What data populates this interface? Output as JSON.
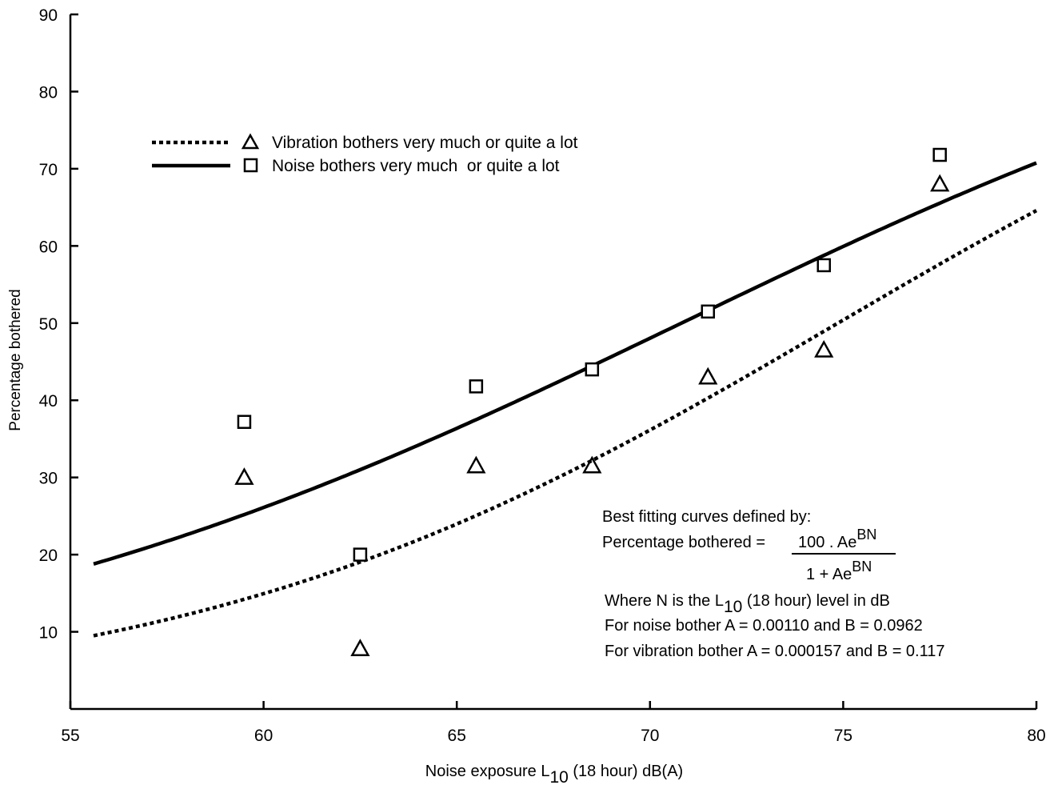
{
  "chart_data": {
    "type": "scatter",
    "xlim": [
      55,
      80
    ],
    "ylim": [
      0,
      90
    ],
    "x_ticks": [
      55,
      60,
      65,
      70,
      75,
      80
    ],
    "y_ticks": [
      10,
      20,
      30,
      40,
      50,
      60,
      70,
      80,
      90
    ],
    "x_tick_labels": [
      "55",
      "60",
      "65",
      "70",
      "75",
      "80"
    ],
    "y_tick_labels": [
      "10",
      "20",
      "30",
      "40",
      "50",
      "60",
      "70",
      "80",
      "90"
    ],
    "xlabel": {
      "prefix": "Noise exposure L",
      "sub": "10",
      "suffix": " (18 hour) dB(A)"
    },
    "ylabel": "Percentage bothered",
    "grid": false,
    "legend_position": "top-left",
    "series": [
      {
        "name": "Vibration bothers very much or quite a lot",
        "marker": "triangle",
        "line_style": "dotted",
        "fit": {
          "A": 0.000157,
          "B": 0.117,
          "x_range": [
            55.6,
            80
          ]
        },
        "points": [
          {
            "x": 59.5,
            "y": 30
          },
          {
            "x": 62.5,
            "y": 7.8
          },
          {
            "x": 65.5,
            "y": 31.5
          },
          {
            "x": 68.5,
            "y": 31.5
          },
          {
            "x": 71.5,
            "y": 43
          },
          {
            "x": 74.5,
            "y": 46.5
          },
          {
            "x": 77.5,
            "y": 68
          }
        ]
      },
      {
        "name": "Noise bothers very much  or quite a lot",
        "marker": "square",
        "line_style": "solid",
        "fit": {
          "A": 0.0011,
          "B": 0.0962,
          "x_range": [
            55.6,
            80
          ]
        },
        "points": [
          {
            "x": 59.5,
            "y": 37.2
          },
          {
            "x": 62.5,
            "y": 20
          },
          {
            "x": 65.5,
            "y": 41.8
          },
          {
            "x": 68.5,
            "y": 44
          },
          {
            "x": 71.5,
            "y": 51.5
          },
          {
            "x": 74.5,
            "y": 57.5
          },
          {
            "x": 77.5,
            "y": 71.8
          }
        ]
      }
    ],
    "annotation": {
      "line1": "Best fitting curves defined by:",
      "formula_prefix": "Percentage bothered = ",
      "numerator": "100 . Ae",
      "numerator_sup": "BN",
      "denominator": "1 + Ae",
      "denominator_sup": "BN",
      "line_where_prefix": "Where N is the L",
      "line_where_sub": "10",
      "line_where_suffix": " (18 hour) level in dB",
      "line_noise": "For noise bother A = 0.00110 and B = 0.0962",
      "line_vibration": "For vibration bother A = 0.000157 and B = 0.117"
    }
  }
}
